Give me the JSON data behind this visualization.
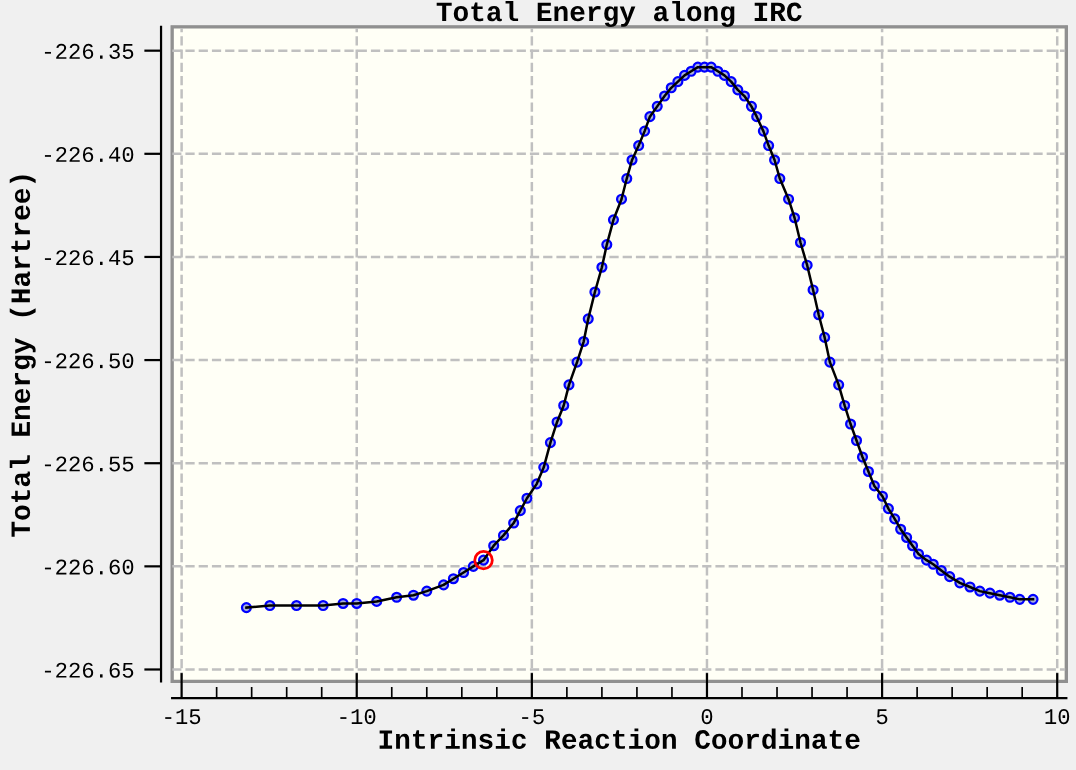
{
  "chart_data": {
    "type": "line",
    "title": "Total Energy along IRC",
    "xlabel": "Intrinsic Reaction Coordinate",
    "ylabel": "Total Energy (Hartree)",
    "xlim": [
      -15.27,
      10.26
    ],
    "ylim": [
      -226.6558,
      -226.3385
    ],
    "xticks": [
      -15,
      -10,
      -5,
      0,
      5,
      10
    ],
    "yticks": [
      {
        "value": -226.35,
        "label": "-226.35"
      },
      {
        "value": -226.4,
        "label": "-226.40"
      },
      {
        "value": -226.45,
        "label": "-226.45"
      },
      {
        "value": -226.5,
        "label": "-226.50"
      },
      {
        "value": -226.55,
        "label": "-226.55"
      },
      {
        "value": -226.6,
        "label": "-226.60"
      },
      {
        "value": -226.65,
        "label": "-226.65"
      }
    ],
    "grid": true,
    "marker": "circle",
    "line_style": "solid",
    "series": [
      {
        "color": "#0000ff",
        "x": [
          -13.15,
          -12.48,
          -11.72,
          -10.96,
          -10.39,
          -10.0,
          -9.43,
          -8.86,
          -8.38,
          -8.0,
          -7.52,
          -7.24,
          -6.95,
          -6.67,
          -6.38,
          -6.09,
          -5.81,
          -5.52,
          -5.33,
          -5.14,
          -4.86,
          -4.66,
          -4.47,
          -4.28,
          -4.09,
          -3.94,
          -3.71,
          -3.52,
          -3.39,
          -3.2,
          -3.0,
          -2.86,
          -2.67,
          -2.44,
          -2.29,
          -2.14,
          -1.95,
          -1.78,
          -1.63,
          -1.42,
          -1.21,
          -1.02,
          -0.83,
          -0.64,
          -0.45,
          -0.26,
          -0.07,
          0.12,
          0.31,
          0.5,
          0.69,
          0.88,
          1.07,
          1.27,
          1.42,
          1.61,
          1.76,
          1.93,
          2.08,
          2.33,
          2.5,
          2.67,
          2.86,
          3.03,
          3.19,
          3.36,
          3.51,
          3.76,
          3.93,
          4.1,
          4.27,
          4.44,
          4.61,
          4.78,
          5.01,
          5.18,
          5.36,
          5.53,
          5.7,
          5.87,
          6.04,
          6.27,
          6.46,
          6.69,
          6.93,
          7.22,
          7.51,
          7.79,
          8.08,
          8.36,
          8.65,
          8.93,
          9.31
        ],
        "values": [
          -226.62,
          -226.619,
          -226.619,
          -226.619,
          -226.618,
          -226.618,
          -226.617,
          -226.615,
          -226.614,
          -226.612,
          -226.609,
          -226.606,
          -226.603,
          -226.6,
          -226.597,
          -226.59,
          -226.585,
          -226.579,
          -226.573,
          -226.567,
          -226.56,
          -226.552,
          -226.54,
          -226.53,
          -226.522,
          -226.512,
          -226.501,
          -226.491,
          -226.48,
          -226.467,
          -226.455,
          -226.444,
          -226.432,
          -226.422,
          -226.412,
          -226.403,
          -226.396,
          -226.389,
          -226.382,
          -226.377,
          -226.372,
          -226.368,
          -226.365,
          -226.362,
          -226.36,
          -226.358,
          -226.358,
          -226.358,
          -226.36,
          -226.362,
          -226.365,
          -226.369,
          -226.372,
          -226.377,
          -226.382,
          -226.389,
          -226.396,
          -226.403,
          -226.412,
          -226.422,
          -226.431,
          -226.443,
          -226.454,
          -226.466,
          -226.478,
          -226.489,
          -226.501,
          -226.512,
          -226.522,
          -226.531,
          -226.539,
          -226.547,
          -226.554,
          -226.561,
          -226.566,
          -226.572,
          -226.577,
          -226.582,
          -226.586,
          -226.59,
          -226.594,
          -226.597,
          -226.599,
          -226.602,
          -226.605,
          -226.608,
          -226.61,
          -226.612,
          -226.613,
          -226.614,
          -226.615,
          -226.616,
          -226.616
        ]
      },
      {
        "type": "scatter",
        "color": "#ff0000",
        "x": [
          -6.38
        ],
        "values": [
          -226.597
        ]
      }
    ]
  }
}
